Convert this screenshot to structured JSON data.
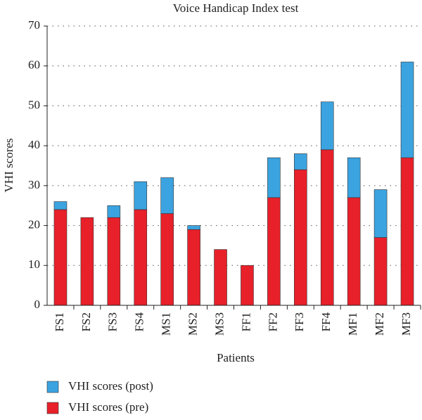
{
  "chart_data": {
    "type": "stacked_bar",
    "title": "Voice Handicap Index test",
    "x_label": "Patients",
    "y_label": "VHI scores",
    "categories": [
      "FS1",
      "FS2",
      "FS3",
      "FS4",
      "MS1",
      "MS2",
      "MS3",
      "FF1",
      "FF2",
      "FF3",
      "FF4",
      "MF1",
      "MF2",
      "MF3"
    ],
    "series": [
      {
        "name": "VHI scores (pre)",
        "color": "#e8202a",
        "values": [
          24,
          22,
          22,
          24,
          23,
          19,
          14,
          10,
          27,
          34,
          39,
          27,
          17,
          37
        ]
      },
      {
        "name": "VHI scores (post)",
        "color": "#3aa3e0",
        "values": [
          2,
          0,
          3,
          7,
          9,
          1,
          0,
          0,
          10,
          4,
          12,
          10,
          12,
          24
        ]
      }
    ],
    "ylim": [
      0,
      70
    ],
    "yticks": [
      0,
      10,
      20,
      30,
      40,
      50,
      60,
      70
    ],
    "grid": true
  }
}
